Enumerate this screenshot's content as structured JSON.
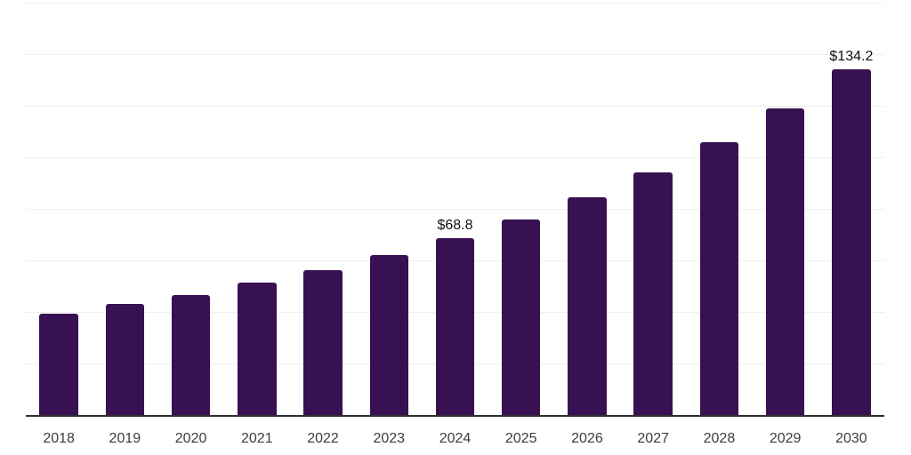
{
  "chart_data": {
    "type": "bar",
    "categories": [
      "2018",
      "2019",
      "2020",
      "2021",
      "2022",
      "2023",
      "2024",
      "2025",
      "2026",
      "2027",
      "2028",
      "2029",
      "2030"
    ],
    "values": [
      39.7,
      43.3,
      46.9,
      51.6,
      56.5,
      62.2,
      68.8,
      76.0,
      84.8,
      94.3,
      106.0,
      119.2,
      134.2
    ],
    "bar_labels": [
      "",
      "",
      "",
      "",
      "",
      "",
      "$68.8",
      "",
      "",
      "",
      "",
      "",
      "$134.2"
    ],
    "ylim": [
      0,
      160
    ],
    "gridline_step": 20,
    "grid": "horizontal",
    "legend": "none",
    "colors": {
      "bar": "#371151",
      "gridline": "#efefef",
      "axis": "#2e2e2e",
      "tick_label": "#3c3c3c",
      "value_label": "#111111"
    }
  }
}
